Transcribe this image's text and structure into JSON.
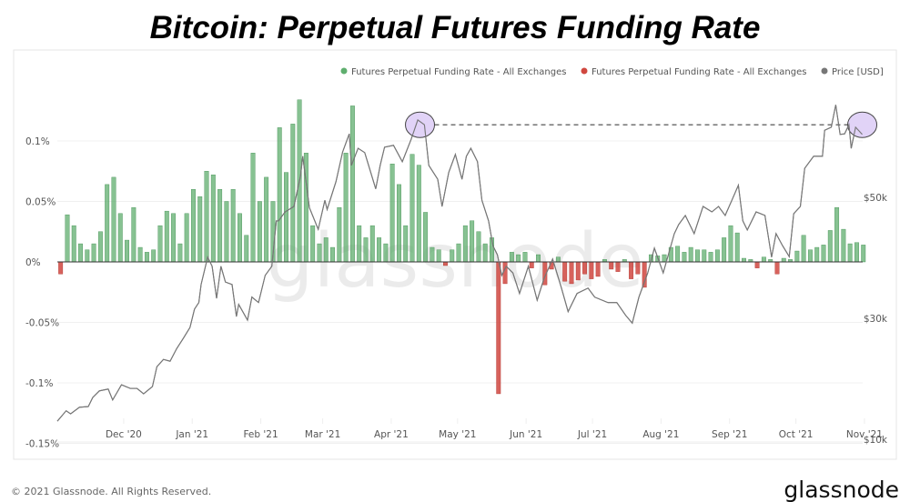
{
  "chart_data": {
    "type": "bar+line",
    "title": "Bitcoin: Perpetual Futures Funding Rate",
    "footer": "© 2021 Glassnode. All Rights Reserved.",
    "brand": "glassnode",
    "watermark": "glassnode",
    "legend": {
      "placement": "top-right",
      "entries": [
        {
          "label": "Futures Perpetual Funding Rate - All Exchanges",
          "color": "#5fae6e"
        },
        {
          "label": "Futures Perpetual Funding Rate - All Exchanges",
          "color": "#d0473f"
        },
        {
          "label": "Price [USD]",
          "color": "#777777"
        }
      ]
    },
    "x_ticks": [
      "Dec '20",
      "Jan '21",
      "Feb '21",
      "Mar '21",
      "Apr '21",
      "May '21",
      "Jun '21",
      "Jul '21",
      "Aug '21",
      "Sep '21",
      "Oct '21",
      "Nov '21"
    ],
    "x_tick_dates": [
      "2020-12-01",
      "2021-01-01",
      "2021-02-01",
      "2021-03-01",
      "2021-04-01",
      "2021-05-01",
      "2021-06-01",
      "2021-07-01",
      "2021-08-01",
      "2021-09-01",
      "2021-10-01",
      "2021-11-01"
    ],
    "xlim": [
      "2020-11-01",
      "2021-11-01"
    ],
    "y_left": {
      "ticks": [
        "0.1%",
        "0.05%",
        "0%",
        "-0.05%",
        "-0.1%",
        "-0.15%"
      ],
      "tick_values": [
        0.1,
        0.05,
        0,
        -0.05,
        -0.1,
        -0.15
      ],
      "unit": "%",
      "lim": [
        -0.15,
        0.135
      ]
    },
    "y_right": {
      "ticks": [
        "$50k",
        "$30k",
        "$10k"
      ],
      "tick_values": [
        50000,
        30000,
        10000
      ],
      "unit": "USD",
      "scale": "linear"
    },
    "grid": true,
    "colors": {
      "positive": "#5fae6e",
      "negative": "#d0473f",
      "price": "#777777",
      "highlight": "#d9c8f5",
      "dashed": "#444444"
    },
    "annotations": [
      {
        "type": "circle",
        "date": "2021-04-14",
        "price": 62000
      },
      {
        "type": "circle",
        "date": "2021-10-31",
        "price": 62000
      },
      {
        "type": "dashed-line",
        "from": "2021-04-14",
        "to": "2021-10-31",
        "price": 62000
      }
    ],
    "funding_rate": [
      [
        "2020-11-01",
        -0.01
      ],
      [
        "2020-11-04",
        0.039
      ],
      [
        "2020-11-07",
        0.03
      ],
      [
        "2020-11-10",
        0.015
      ],
      [
        "2020-11-13",
        0.01
      ],
      [
        "2020-11-16",
        0.015
      ],
      [
        "2020-11-19",
        0.025
      ],
      [
        "2020-11-22",
        0.064
      ],
      [
        "2020-11-25",
        0.07
      ],
      [
        "2020-11-28",
        0.04
      ],
      [
        "2020-12-01",
        0.018
      ],
      [
        "2020-12-04",
        0.045
      ],
      [
        "2020-12-07",
        0.012
      ],
      [
        "2020-12-10",
        0.008
      ],
      [
        "2020-12-13",
        0.01
      ],
      [
        "2020-12-16",
        0.03
      ],
      [
        "2020-12-19",
        0.042
      ],
      [
        "2020-12-22",
        0.04
      ],
      [
        "2020-12-25",
        0.015
      ],
      [
        "2020-12-28",
        0.04
      ],
      [
        "2020-12-31",
        0.06
      ],
      [
        "2021-01-03",
        0.054
      ],
      [
        "2021-01-06",
        0.075
      ],
      [
        "2021-01-09",
        0.072
      ],
      [
        "2021-01-12",
        0.06
      ],
      [
        "2021-01-15",
        0.05
      ],
      [
        "2021-01-18",
        0.06
      ],
      [
        "2021-01-21",
        0.04
      ],
      [
        "2021-01-24",
        0.022
      ],
      [
        "2021-01-27",
        0.09
      ],
      [
        "2021-01-30",
        0.05
      ],
      [
        "2021-02-02",
        0.07
      ],
      [
        "2021-02-05",
        0.05
      ],
      [
        "2021-02-08",
        0.111
      ],
      [
        "2021-02-11",
        0.074
      ],
      [
        "2021-02-14",
        0.114
      ],
      [
        "2021-02-17",
        0.134
      ],
      [
        "2021-02-20",
        0.09
      ],
      [
        "2021-02-23",
        0.03
      ],
      [
        "2021-02-26",
        0.015
      ],
      [
        "2021-03-01",
        0.02
      ],
      [
        "2021-03-04",
        0.012
      ],
      [
        "2021-03-07",
        0.045
      ],
      [
        "2021-03-10",
        0.09
      ],
      [
        "2021-03-13",
        0.129
      ],
      [
        "2021-03-16",
        0.03
      ],
      [
        "2021-03-19",
        0.02
      ],
      [
        "2021-03-22",
        0.03
      ],
      [
        "2021-03-25",
        0.02
      ],
      [
        "2021-03-28",
        0.015
      ],
      [
        "2021-03-31",
        0.081
      ],
      [
        "2021-04-03",
        0.064
      ],
      [
        "2021-04-06",
        0.03
      ],
      [
        "2021-04-09",
        0.089
      ],
      [
        "2021-04-12",
        0.08
      ],
      [
        "2021-04-15",
        0.041
      ],
      [
        "2021-04-18",
        0.012
      ],
      [
        "2021-04-21",
        0.01
      ],
      [
        "2021-04-24",
        -0.003
      ],
      [
        "2021-04-27",
        0.01
      ],
      [
        "2021-04-30",
        0.015
      ],
      [
        "2021-05-03",
        0.03
      ],
      [
        "2021-05-06",
        0.034
      ],
      [
        "2021-05-09",
        0.025
      ],
      [
        "2021-05-12",
        0.015
      ],
      [
        "2021-05-15",
        0.02
      ],
      [
        "2021-05-18",
        -0.109
      ],
      [
        "2021-05-21",
        -0.018
      ],
      [
        "2021-05-24",
        0.008
      ],
      [
        "2021-05-27",
        0.006
      ],
      [
        "2021-05-30",
        0.008
      ],
      [
        "2021-06-02",
        -0.005
      ],
      [
        "2021-06-05",
        0.006
      ],
      [
        "2021-06-08",
        -0.019
      ],
      [
        "2021-06-11",
        -0.006
      ],
      [
        "2021-06-14",
        0.004
      ],
      [
        "2021-06-17",
        -0.016
      ],
      [
        "2021-06-20",
        -0.018
      ],
      [
        "2021-06-23",
        -0.015
      ],
      [
        "2021-06-26",
        -0.01
      ],
      [
        "2021-06-29",
        -0.014
      ],
      [
        "2021-07-02",
        -0.012
      ],
      [
        "2021-07-05",
        0.002
      ],
      [
        "2021-07-08",
        -0.006
      ],
      [
        "2021-07-11",
        -0.008
      ],
      [
        "2021-07-14",
        0.002
      ],
      [
        "2021-07-17",
        -0.014
      ],
      [
        "2021-07-20",
        -0.01
      ],
      [
        "2021-07-23",
        -0.021
      ],
      [
        "2021-07-26",
        0.006
      ],
      [
        "2021-07-29",
        0.005
      ],
      [
        "2021-08-01",
        0.006
      ],
      [
        "2021-08-04",
        0.012
      ],
      [
        "2021-08-07",
        0.013
      ],
      [
        "2021-08-10",
        0.008
      ],
      [
        "2021-08-13",
        0.012
      ],
      [
        "2021-08-16",
        0.01
      ],
      [
        "2021-08-19",
        0.01
      ],
      [
        "2021-08-22",
        0.008
      ],
      [
        "2021-08-25",
        0.01
      ],
      [
        "2021-08-28",
        0.02
      ],
      [
        "2021-08-31",
        0.03
      ],
      [
        "2021-09-03",
        0.024
      ],
      [
        "2021-09-06",
        0.003
      ],
      [
        "2021-09-09",
        0.002
      ],
      [
        "2021-09-12",
        -0.005
      ],
      [
        "2021-09-15",
        0.004
      ],
      [
        "2021-09-18",
        0.002
      ],
      [
        "2021-09-21",
        -0.01
      ],
      [
        "2021-09-24",
        0.003
      ],
      [
        "2021-09-27",
        0.002
      ],
      [
        "2021-09-30",
        0.009
      ],
      [
        "2021-10-03",
        0.022
      ],
      [
        "2021-10-06",
        0.01
      ],
      [
        "2021-10-09",
        0.012
      ],
      [
        "2021-10-12",
        0.014
      ],
      [
        "2021-10-15",
        0.026
      ],
      [
        "2021-10-18",
        0.045
      ],
      [
        "2021-10-21",
        0.027
      ],
      [
        "2021-10-24",
        0.015
      ],
      [
        "2021-10-27",
        0.016
      ],
      [
        "2021-10-30",
        0.014
      ]
    ],
    "price_usd": [
      [
        "2020-11-01",
        13000
      ],
      [
        "2020-11-05",
        14700
      ],
      [
        "2020-11-07",
        14200
      ],
      [
        "2020-11-11",
        15300
      ],
      [
        "2020-11-15",
        15400
      ],
      [
        "2020-11-17",
        16900
      ],
      [
        "2020-11-20",
        18000
      ],
      [
        "2020-11-24",
        18300
      ],
      [
        "2020-11-26",
        16500
      ],
      [
        "2020-11-30",
        19000
      ],
      [
        "2020-12-04",
        18400
      ],
      [
        "2020-12-07",
        18400
      ],
      [
        "2020-12-10",
        17500
      ],
      [
        "2020-12-14",
        18700
      ],
      [
        "2020-12-16",
        22000
      ],
      [
        "2020-12-19",
        23200
      ],
      [
        "2020-12-22",
        22900
      ],
      [
        "2020-12-25",
        25000
      ],
      [
        "2020-12-28",
        26700
      ],
      [
        "2020-12-31",
        28500
      ],
      [
        "2021-01-02",
        31500
      ],
      [
        "2021-01-04",
        32600
      ],
      [
        "2021-01-05",
        35600
      ],
      [
        "2021-01-08",
        40100
      ],
      [
        "2021-01-10",
        38600
      ],
      [
        "2021-01-12",
        33300
      ],
      [
        "2021-01-14",
        38600
      ],
      [
        "2021-01-16",
        36000
      ],
      [
        "2021-01-19",
        35600
      ],
      [
        "2021-01-21",
        30300
      ],
      [
        "2021-01-22",
        32300
      ],
      [
        "2021-01-26",
        29700
      ],
      [
        "2021-01-28",
        33500
      ],
      [
        "2021-01-31",
        32600
      ],
      [
        "2021-02-03",
        37100
      ],
      [
        "2021-02-06",
        38600
      ],
      [
        "2021-02-08",
        46100
      ],
      [
        "2021-02-09",
        46100
      ],
      [
        "2021-02-12",
        47600
      ],
      [
        "2021-02-16",
        48500
      ],
      [
        "2021-02-19",
        53600
      ],
      [
        "2021-02-20",
        56800
      ],
      [
        "2021-02-23",
        48300
      ],
      [
        "2021-02-27",
        44700
      ],
      [
        "2021-03-02",
        49500
      ],
      [
        "2021-03-03",
        48000
      ],
      [
        "2021-03-07",
        52600
      ],
      [
        "2021-03-10",
        57500
      ],
      [
        "2021-03-13",
        60500
      ],
      [
        "2021-03-14",
        55300
      ],
      [
        "2021-03-17",
        58100
      ],
      [
        "2021-03-20",
        57400
      ],
      [
        "2021-03-25",
        51400
      ],
      [
        "2021-03-27",
        55300
      ],
      [
        "2021-03-29",
        58300
      ],
      [
        "2021-04-02",
        58600
      ],
      [
        "2021-04-06",
        55900
      ],
      [
        "2021-04-10",
        59600
      ],
      [
        "2021-04-13",
        62800
      ],
      [
        "2021-04-16",
        62000
      ],
      [
        "2021-04-18",
        55300
      ],
      [
        "2021-04-22",
        53000
      ],
      [
        "2021-04-24",
        48500
      ],
      [
        "2021-04-27",
        54100
      ],
      [
        "2021-04-30",
        57100
      ],
      [
        "2021-05-03",
        53000
      ],
      [
        "2021-05-05",
        56800
      ],
      [
        "2021-05-07",
        58100
      ],
      [
        "2021-05-10",
        55900
      ],
      [
        "2021-05-12",
        49500
      ],
      [
        "2021-05-15",
        46100
      ],
      [
        "2021-05-17",
        42000
      ],
      [
        "2021-05-19",
        40500
      ],
      [
        "2021-05-21",
        37100
      ],
      [
        "2021-05-23",
        38600
      ],
      [
        "2021-05-26",
        37500
      ],
      [
        "2021-05-29",
        34100
      ],
      [
        "2021-06-02",
        38600
      ],
      [
        "2021-06-06",
        33000
      ],
      [
        "2021-06-09",
        36500
      ],
      [
        "2021-06-13",
        39800
      ],
      [
        "2021-06-17",
        35000
      ],
      [
        "2021-06-20",
        31100
      ],
      [
        "2021-06-24",
        34100
      ],
      [
        "2021-06-29",
        35000
      ],
      [
        "2021-07-02",
        33500
      ],
      [
        "2021-07-08",
        32600
      ],
      [
        "2021-07-12",
        32600
      ],
      [
        "2021-07-16",
        30500
      ],
      [
        "2021-07-19",
        29200
      ],
      [
        "2021-07-22",
        33500
      ],
      [
        "2021-07-26",
        37500
      ],
      [
        "2021-07-29",
        41600
      ],
      [
        "2021-08-02",
        37500
      ],
      [
        "2021-08-07",
        44000
      ],
      [
        "2021-08-09",
        45500
      ],
      [
        "2021-08-12",
        47000
      ],
      [
        "2021-08-16",
        44000
      ],
      [
        "2021-08-20",
        48500
      ],
      [
        "2021-08-24",
        47600
      ],
      [
        "2021-08-27",
        48500
      ],
      [
        "2021-08-30",
        47000
      ],
      [
        "2021-09-02",
        49500
      ],
      [
        "2021-09-05",
        52000
      ],
      [
        "2021-09-07",
        46100
      ],
      [
        "2021-09-09",
        44600
      ],
      [
        "2021-09-13",
        47600
      ],
      [
        "2021-09-17",
        47000
      ],
      [
        "2021-09-20",
        40100
      ],
      [
        "2021-09-22",
        44000
      ],
      [
        "2021-09-25",
        42000
      ],
      [
        "2021-09-28",
        40200
      ],
      [
        "2021-09-30",
        47300
      ],
      [
        "2021-10-03",
        48500
      ],
      [
        "2021-10-05",
        54800
      ],
      [
        "2021-10-09",
        56800
      ],
      [
        "2021-10-13",
        56800
      ],
      [
        "2021-10-14",
        61100
      ],
      [
        "2021-10-17",
        61600
      ],
      [
        "2021-10-19",
        65300
      ],
      [
        "2021-10-21",
        60400
      ],
      [
        "2021-10-23",
        60500
      ],
      [
        "2021-10-25",
        62000
      ],
      [
        "2021-10-26",
        58100
      ],
      [
        "2021-10-28",
        61600
      ],
      [
        "2021-10-31",
        60400
      ]
    ]
  }
}
